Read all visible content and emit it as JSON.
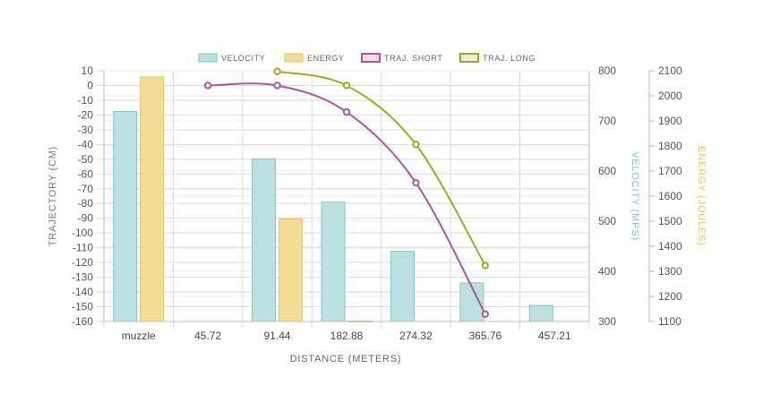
{
  "chart_data": {
    "type": "bar",
    "categories": [
      "muzzle",
      "45.72",
      "91.44",
      "182.88",
      "274.32",
      "365.76",
      "457.21"
    ],
    "xlabel": "DISTANCE (METERS)",
    "axes": {
      "trajectory": {
        "label": "TRAJECTORY (CM)",
        "range": [
          -160,
          10
        ],
        "ticks": [
          10,
          0,
          -10,
          -20,
          -30,
          -40,
          -50,
          -60,
          -70,
          -80,
          -90,
          -100,
          -110,
          -120,
          -130,
          -140,
          -150,
          -160
        ],
        "color": "#888888"
      },
      "velocity": {
        "label": "VELOCITY (MPS)",
        "range": [
          300,
          800
        ],
        "ticks": [
          800,
          700,
          600,
          500,
          400,
          300
        ],
        "color": "#7fc4c8"
      },
      "energy": {
        "label": "ENERGY (JOULES)",
        "range": [
          1100,
          2100
        ],
        "ticks": [
          2100,
          2000,
          1900,
          1800,
          1700,
          1600,
          1500,
          1400,
          1300,
          1200,
          1100
        ],
        "color": "#e6c35c"
      }
    },
    "series": [
      {
        "name": "VELOCITY",
        "kind": "bar",
        "axis": "velocity",
        "color": "#7fc4c8",
        "fill": "#bcdfe0",
        "values": [
          719,
          null,
          624,
          538,
          440,
          377,
          332
        ]
      },
      {
        "name": "ENERGY",
        "kind": "bar",
        "axis": "energy",
        "color": "#e6c35c",
        "fill": "#f3dc96",
        "values": [
          2075,
          null,
          1510,
          1102,
          null,
          null,
          null
        ]
      },
      {
        "name": "TRAJ. SHORT",
        "kind": "line",
        "axis": "trajectory",
        "color": "#a8579b",
        "values": [
          null,
          0,
          0,
          -18,
          -66,
          -155,
          null
        ]
      },
      {
        "name": "TRAJ. LONG",
        "kind": "line",
        "axis": "trajectory",
        "color": "#a0a920",
        "values": [
          null,
          null,
          9.5,
          0,
          -40,
          -122,
          null
        ]
      }
    ],
    "legend": {
      "position": "top"
    },
    "grid": true
  }
}
